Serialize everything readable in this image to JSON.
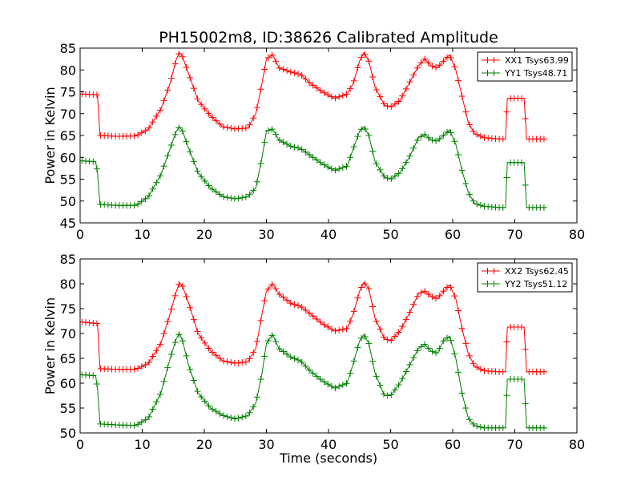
{
  "title": "PH15002m8, ID:38626 Calibrated Amplitude",
  "colors": {
    "red": "#ff0000",
    "green": "#008000"
  },
  "chart_data": [
    {
      "type": "line",
      "ylabel": "Power in Kelvin",
      "xlabel": "",
      "xlim": [
        0,
        80
      ],
      "ylim": [
        45,
        85
      ],
      "xticks": [
        0,
        10,
        20,
        30,
        40,
        50,
        60,
        70,
        80
      ],
      "yticks": [
        45,
        50,
        55,
        60,
        65,
        70,
        75,
        80,
        85
      ],
      "legend_position": "top-right",
      "series": [
        {
          "name": "XX1 Tsys63.99",
          "color": "#ff0000",
          "x": [
            0.3,
            2.8,
            3.2,
            6,
            9,
            11,
            13,
            14.5,
            15.5,
            16,
            16.5,
            17.5,
            19,
            21,
            23,
            25,
            27,
            28.3,
            29.3,
            30,
            31,
            32,
            34,
            35.5,
            37,
            39,
            41,
            43,
            44,
            45,
            45.7,
            46.5,
            47.5,
            49,
            50,
            51.5,
            53,
            54.5,
            55.5,
            56.5,
            57.5,
            58.5,
            59.5,
            60.5,
            61.5,
            62.5,
            63.5,
            65,
            67.5,
            68.5,
            68.8,
            69.2,
            71.5,
            71.9,
            75
          ],
          "y": [
            74.5,
            74.3,
            65,
            64.8,
            64.9,
            66.5,
            71,
            77,
            82.5,
            84,
            83,
            79,
            73,
            69.5,
            67,
            66.5,
            66.7,
            70,
            77,
            82.5,
            83.5,
            80.5,
            79.5,
            79,
            77,
            75,
            73.5,
            74.5,
            77,
            82,
            84,
            82,
            76,
            72,
            71.5,
            73,
            77,
            81,
            82.5,
            81,
            80.5,
            82,
            83.5,
            80,
            74,
            68,
            65.5,
            64.5,
            64.2,
            64.2,
            73.5,
            73.5,
            73.5,
            64.2,
            64.2
          ]
        },
        {
          "name": "YY1 Tsys48.71",
          "color": "#008000",
          "x": [
            0.3,
            2.5,
            2.8,
            3.2,
            6,
            9,
            11,
            13,
            14.5,
            15.5,
            16,
            16.5,
            17.5,
            19,
            21,
            23,
            25,
            27,
            28.3,
            29.3,
            30,
            31,
            32,
            34,
            35.5,
            37,
            39,
            41,
            43,
            44,
            45,
            45.7,
            46.5,
            47.5,
            49,
            50,
            51.5,
            53,
            54.5,
            55.5,
            56.5,
            57.5,
            58.5,
            59.5,
            60.5,
            61.5,
            62.5,
            63.5,
            65,
            67.5,
            68.5,
            68.8,
            69.2,
            71.5,
            71.9,
            75
          ],
          "y": [
            59.2,
            59,
            56.5,
            49.2,
            49,
            49,
            51,
            56,
            62,
            66,
            67,
            66,
            62,
            56.5,
            53,
            51,
            50.5,
            51,
            53,
            60,
            66,
            66.5,
            64,
            62.5,
            62,
            60.5,
            58.5,
            57,
            58,
            62,
            66,
            67,
            65,
            59,
            55.5,
            55,
            56.5,
            60,
            64.5,
            65.2,
            64,
            63.7,
            65,
            66.3,
            63,
            57,
            52,
            49.5,
            48.8,
            48.5,
            48.5,
            58.8,
            58.8,
            58.8,
            48.5,
            48.5
          ]
        }
      ]
    },
    {
      "type": "line",
      "ylabel": "Power in Kelvin",
      "xlabel": "Time (seconds)",
      "xlim": [
        0,
        80
      ],
      "ylim": [
        50,
        85
      ],
      "xticks": [
        0,
        10,
        20,
        30,
        40,
        50,
        60,
        70,
        80
      ],
      "yticks": [
        50,
        55,
        60,
        65,
        70,
        75,
        80,
        85
      ],
      "legend_position": "top-right",
      "series": [
        {
          "name": "XX2 Tsys62.45",
          "color": "#ff0000",
          "x": [
            0.3,
            2.8,
            3.2,
            6,
            9,
            11,
            13,
            14.5,
            15.5,
            16,
            16.5,
            17.5,
            19,
            21,
            23,
            25,
            27,
            28.3,
            29.3,
            30,
            31,
            32,
            34,
            35.5,
            37,
            39,
            41,
            43,
            44,
            45,
            45.7,
            46.5,
            47.5,
            49,
            50,
            51.5,
            53,
            54.5,
            55.5,
            56.5,
            57.5,
            58.5,
            59.5,
            60.5,
            61.5,
            62.5,
            63.5,
            65,
            67.5,
            68.5,
            68.8,
            69.2,
            71.5,
            71.9,
            75
          ],
          "y": [
            72.3,
            72,
            62.9,
            62.8,
            62.8,
            64,
            68,
            74,
            78.5,
            80.2,
            79.5,
            76,
            70,
            66.5,
            64.5,
            64,
            64.3,
            67,
            74,
            78.5,
            80,
            78,
            76,
            75.5,
            74,
            72,
            70.5,
            71,
            74,
            78.5,
            80.3,
            79,
            73,
            69,
            68.5,
            70.5,
            74,
            78,
            78.5,
            77.5,
            77,
            78.5,
            79.8,
            77,
            71,
            66,
            63.5,
            62.5,
            62.3,
            62.3,
            71.3,
            71.3,
            71.3,
            62.3,
            62.3
          ]
        },
        {
          "name": "YY2 Tsys51.12",
          "color": "#008000",
          "x": [
            0.3,
            2.5,
            2.8,
            3.2,
            6,
            9,
            11,
            13,
            14.5,
            15.5,
            16,
            16.5,
            17.5,
            19,
            21,
            23,
            25,
            27,
            28.3,
            29.3,
            30,
            31,
            32,
            34,
            35.5,
            37,
            39,
            41,
            43,
            44,
            45,
            45.7,
            46.5,
            47.5,
            49,
            50,
            51.5,
            53,
            54.5,
            55.5,
            56.5,
            57.5,
            58.5,
            59.5,
            60.5,
            61.5,
            62.5,
            63.5,
            65,
            67.5,
            68.5,
            68.8,
            69.2,
            71.5,
            71.9,
            75
          ],
          "y": [
            61.7,
            61.5,
            59,
            51.8,
            51.6,
            51.5,
            53,
            58,
            65,
            69,
            70,
            68.5,
            63.5,
            58,
            55,
            53.5,
            52.8,
            53.5,
            56,
            62,
            68,
            69.8,
            67,
            65.2,
            64.5,
            62.5,
            60.5,
            59,
            60,
            64,
            68.5,
            69.8,
            68,
            62,
            57.5,
            57.5,
            60,
            63.5,
            67,
            67.8,
            66.5,
            66,
            68.5,
            69.5,
            65,
            58,
            53,
            51.5,
            51,
            51,
            51,
            60.8,
            60.8,
            60.8,
            51,
            51
          ]
        }
      ]
    }
  ]
}
